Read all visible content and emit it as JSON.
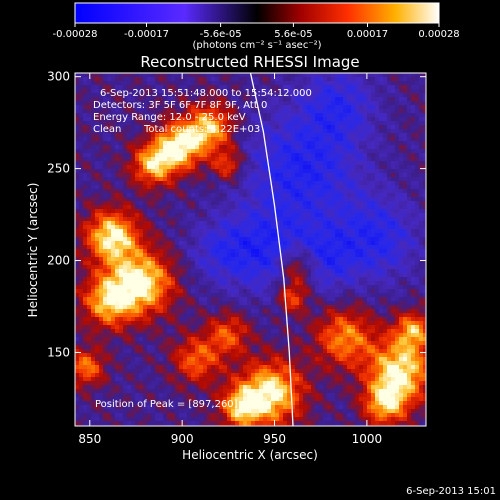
{
  "chart_data": {
    "type": "heatmap",
    "title": "Reconstructed RHESSI Image",
    "xlabel": "Heliocentric X (arcsec)",
    "ylabel": "Heliocentric Y (arcsec)",
    "xlim": [
      842,
      1032
    ],
    "ylim": [
      110,
      302
    ],
    "x_ticks": [
      850,
      900,
      950,
      1000
    ],
    "y_ticks": [
      150,
      200,
      250,
      300
    ],
    "colorbar": {
      "range": [
        -0.00028,
        0.00028
      ],
      "tick_values": [
        -0.00028,
        -0.00017,
        -5.6e-05,
        5.6e-05,
        0.00017,
        0.00028
      ],
      "tick_labels": [
        "-0.00028",
        "-0.00017",
        "-5.6e-05",
        "5.6e-05",
        "0.00017",
        "0.00028"
      ],
      "label": "(photons cm⁻² s⁻¹ asec⁻²)"
    },
    "annotations": {
      "time_range": "6-Sep-2013 15:51:48.000 to 15:54:12.000",
      "detectors": "Detectors: 3F 5F 6F 7F 8F 9F, Att 0",
      "energy": "Energy Range: 12.0 - 25.0 keV",
      "clean": "Clean",
      "counts": "Total counts: 4.22E+03",
      "peak": "Position of Peak = [897,260]"
    },
    "limb_line": [
      [
        937,
        302
      ],
      [
        944,
        270
      ],
      [
        950,
        230
      ],
      [
        955,
        190
      ],
      [
        958,
        150
      ],
      [
        960,
        110
      ]
    ],
    "hot_spots": [
      {
        "x": 862,
        "y": 213,
        "v": 1.0,
        "r": 10
      },
      {
        "x": 878,
        "y": 188,
        "v": 1.0,
        "r": 12
      },
      {
        "x": 860,
        "y": 178,
        "v": 0.8,
        "r": 10
      },
      {
        "x": 898,
        "y": 262,
        "v": 1.0,
        "r": 9
      },
      {
        "x": 915,
        "y": 272,
        "v": 0.85,
        "r": 9
      },
      {
        "x": 884,
        "y": 252,
        "v": 0.8,
        "r": 8
      },
      {
        "x": 925,
        "y": 252,
        "v": 0.55,
        "r": 6
      },
      {
        "x": 908,
        "y": 146,
        "v": 0.6,
        "r": 9
      },
      {
        "x": 925,
        "y": 160,
        "v": 0.55,
        "r": 8
      },
      {
        "x": 948,
        "y": 128,
        "v": 1.0,
        "r": 12
      },
      {
        "x": 932,
        "y": 120,
        "v": 0.75,
        "r": 8
      },
      {
        "x": 963,
        "y": 197,
        "v": 0.75,
        "r": 8
      },
      {
        "x": 960,
        "y": 180,
        "v": 0.6,
        "r": 6
      },
      {
        "x": 988,
        "y": 158,
        "v": 0.7,
        "r": 11
      },
      {
        "x": 1018,
        "y": 140,
        "v": 1.0,
        "r": 12
      },
      {
        "x": 1010,
        "y": 122,
        "v": 0.8,
        "r": 8
      },
      {
        "x": 1025,
        "y": 162,
        "v": 0.7,
        "r": 7
      },
      {
        "x": 848,
        "y": 142,
        "v": 0.65,
        "r": 7
      }
    ],
    "cold_spots": [
      {
        "x": 965,
        "y": 250,
        "v": -0.6,
        "r": 22
      },
      {
        "x": 945,
        "y": 205,
        "v": -0.55,
        "r": 16
      },
      {
        "x": 1005,
        "y": 212,
        "v": -0.55,
        "r": 16
      },
      {
        "x": 975,
        "y": 200,
        "v": -0.5,
        "r": 12
      },
      {
        "x": 985,
        "y": 285,
        "v": -0.45,
        "r": 14
      },
      {
        "x": 920,
        "y": 205,
        "v": -0.35,
        "r": 12
      }
    ]
  },
  "footer_date": "6-Sep-2013 15:01"
}
